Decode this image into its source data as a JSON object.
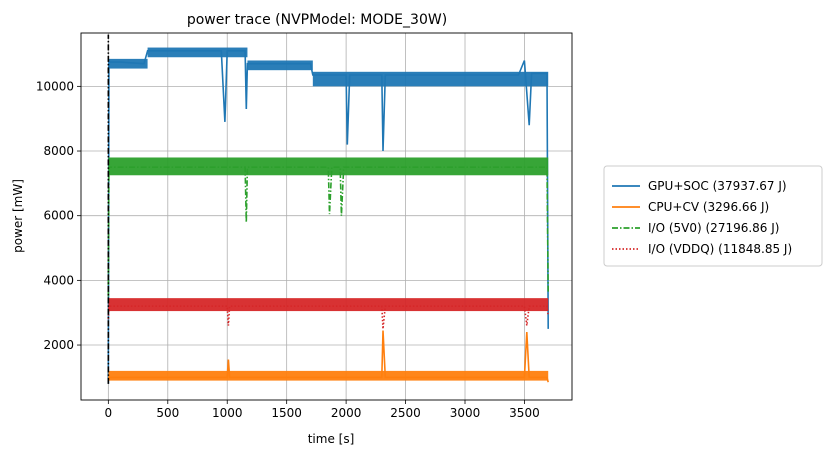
{
  "chart_data": {
    "type": "line",
    "title": "power trace (NVPModel: MODE_30W)",
    "xlabel": "time [s]",
    "ylabel": "power [mW]",
    "xlim": [
      -230,
      3900
    ],
    "ylim": [
      300,
      11650
    ],
    "xticks": [
      0,
      500,
      1000,
      1500,
      2000,
      2500,
      3000,
      3500
    ],
    "yticks": [
      2000,
      4000,
      6000,
      8000,
      10000
    ],
    "grid": true,
    "legend_position": "outside-right",
    "marker_line": {
      "x": 0,
      "y_from": 800,
      "y_to": 11600,
      "color": "#000000"
    },
    "series": [
      {
        "name": "GPU+SOC (37937.67 J)",
        "color": "#1f77b4",
        "style": "solid",
        "points": [
          [
            0,
            800
          ],
          [
            5,
            10750
          ],
          [
            100,
            10750
          ],
          [
            300,
            10700
          ],
          [
            330,
            11100
          ],
          [
            950,
            11100
          ],
          [
            980,
            8900
          ],
          [
            1000,
            11100
          ],
          [
            1150,
            11100
          ],
          [
            1160,
            9300
          ],
          [
            1170,
            10700
          ],
          [
            1700,
            10700
          ],
          [
            1720,
            10350
          ],
          [
            2000,
            10350
          ],
          [
            2010,
            8200
          ],
          [
            2030,
            10350
          ],
          [
            2300,
            10350
          ],
          [
            2310,
            8000
          ],
          [
            2330,
            10350
          ],
          [
            3450,
            10350
          ],
          [
            3500,
            10800
          ],
          [
            3540,
            8800
          ],
          [
            3560,
            10400
          ],
          [
            3690,
            10400
          ],
          [
            3700,
            2500
          ]
        ],
        "band": {
          "x_from": 0,
          "x_to": 3700,
          "steps": [
            [
              0,
              10550,
              10850
            ],
            [
              330,
              10900,
              11200
            ],
            [
              1170,
              10500,
              10800
            ],
            [
              1720,
              10000,
              10450
            ]
          ]
        }
      },
      {
        "name": "CPU+CV (3296.66 J)",
        "color": "#ff7f0e",
        "style": "solid",
        "points": [
          [
            0,
            900
          ],
          [
            5,
            1000
          ],
          [
            1000,
            1000
          ],
          [
            1010,
            1550
          ],
          [
            1020,
            1000
          ],
          [
            2300,
            1000
          ],
          [
            2310,
            2450
          ],
          [
            2330,
            1000
          ],
          [
            3500,
            1000
          ],
          [
            3520,
            2400
          ],
          [
            3540,
            1000
          ],
          [
            3690,
            1000
          ],
          [
            3700,
            850
          ]
        ],
        "band": {
          "x_from": 0,
          "x_to": 3700,
          "steps": [
            [
              0,
              900,
              1200
            ]
          ]
        }
      },
      {
        "name": "I/O (5V0) (27196.86 J)",
        "color": "#2ca02c",
        "style": "dashdot",
        "points": [
          [
            0,
            3500
          ],
          [
            5,
            7500
          ],
          [
            1150,
            7500
          ],
          [
            1160,
            5800
          ],
          [
            1170,
            7500
          ],
          [
            1850,
            7500
          ],
          [
            1860,
            6050
          ],
          [
            1880,
            7500
          ],
          [
            1950,
            7500
          ],
          [
            1960,
            6000
          ],
          [
            1980,
            7500
          ],
          [
            3690,
            7500
          ],
          [
            3700,
            3600
          ]
        ],
        "band": {
          "x_from": 0,
          "x_to": 3700,
          "steps": [
            [
              0,
              7250,
              7800
            ]
          ]
        }
      },
      {
        "name": "I/O (VDDQ) (11848.85 J)",
        "color": "#d62728",
        "style": "dotted",
        "points": [
          [
            0,
            2800
          ],
          [
            5,
            3200
          ],
          [
            1000,
            3200
          ],
          [
            1010,
            2600
          ],
          [
            1020,
            3200
          ],
          [
            2300,
            3200
          ],
          [
            2310,
            2500
          ],
          [
            2330,
            3200
          ],
          [
            3500,
            3200
          ],
          [
            3520,
            2600
          ],
          [
            3540,
            3200
          ],
          [
            3690,
            3200
          ],
          [
            3700,
            2900
          ]
        ],
        "band": {
          "x_from": 0,
          "x_to": 3700,
          "steps": [
            [
              0,
              3050,
              3450
            ]
          ]
        }
      }
    ]
  }
}
